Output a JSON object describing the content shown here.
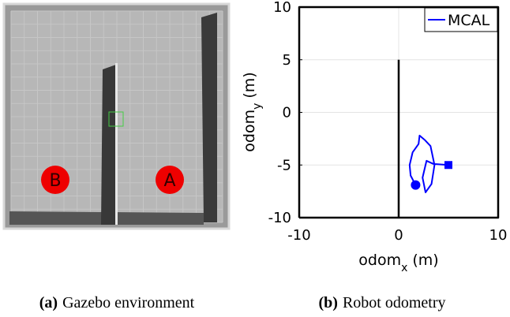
{
  "figure_a": {
    "markers": [
      {
        "label": "B"
      },
      {
        "label": "A"
      }
    ],
    "caption_tag": "(a)",
    "caption": "Gazebo environment"
  },
  "figure_b": {
    "caption_tag": "(b)",
    "caption": "Robot odometry"
  },
  "chart_data": {
    "type": "line",
    "xlabel": "odom",
    "xlabel_sub": "x",
    "xlabel_unit": "(m)",
    "ylabel": "odom",
    "ylabel_sub": "y",
    "ylabel_unit": "(m)",
    "xlim": [
      -10,
      10
    ],
    "ylim": [
      -10,
      10
    ],
    "xticks": [
      -10,
      0,
      10
    ],
    "yticks": [
      -10,
      -5,
      0,
      5,
      10
    ],
    "grid": true,
    "legend": "upper right",
    "series": [
      {
        "color": "#000000",
        "x": [
          -10,
          10,
          10,
          -10,
          -10,
          null,
          0,
          0
        ],
        "values": [
          -10,
          -10,
          10,
          10,
          -10,
          null,
          -10,
          5
        ]
      },
      {
        "name": "MCAL",
        "color": "#0000ff",
        "start_marker": "circle",
        "end_marker": "square",
        "x": [
          1.7,
          1.2,
          1.1,
          1.4,
          2.0,
          2.1,
          2.6,
          3.2,
          3.6,
          3.3,
          2.7,
          2.4,
          2.8,
          3.5,
          5.0
        ],
        "values": [
          -6.9,
          -6.0,
          -5.0,
          -3.8,
          -3.0,
          -2.2,
          -2.6,
          -3.2,
          -5.0,
          -6.8,
          -7.6,
          -6.2,
          -4.6,
          -4.9,
          -5.0
        ]
      }
    ]
  }
}
